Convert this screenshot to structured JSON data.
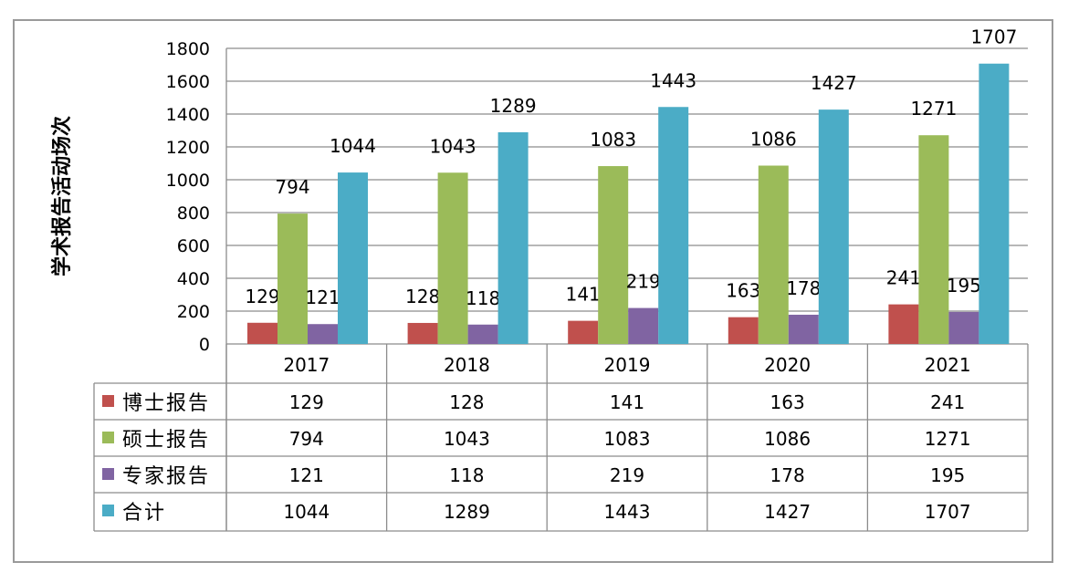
{
  "chart_data": {
    "type": "bar",
    "ylabel": "学术报告活动场次",
    "ylim": [
      0,
      1800
    ],
    "yticks": [
      0,
      200,
      400,
      600,
      800,
      1000,
      1200,
      1400,
      1600,
      1800
    ],
    "grid": true,
    "legend": "data-table-below",
    "categories": [
      "2017",
      "2018",
      "2019",
      "2020",
      "2021"
    ],
    "series": [
      {
        "name": "博士报告",
        "color": "#c0504d",
        "values": [
          129,
          128,
          141,
          163,
          241
        ]
      },
      {
        "name": "硕士报告",
        "color": "#9bbb59",
        "values": [
          794,
          1043,
          1083,
          1086,
          1271
        ]
      },
      {
        "name": "专家报告",
        "color": "#8064a2",
        "values": [
          121,
          118,
          219,
          178,
          195
        ]
      },
      {
        "name": "合计",
        "color": "#4bacc6",
        "values": [
          1044,
          1289,
          1443,
          1427,
          1707
        ]
      }
    ]
  }
}
